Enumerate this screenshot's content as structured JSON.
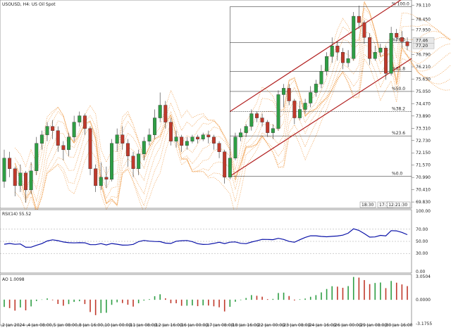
{
  "header": {
    "symbol": "USOUSD",
    "timeframe": "H4",
    "description": "US Oil Spot"
  },
  "main": {
    "price_axis": [
      "79.110",
      "78.450",
      "77.950",
      "76.790",
      "76.210",
      "75.630",
      "75.050",
      "74.470",
      "73.890",
      "73.310",
      "72.730",
      "72.150",
      "71.570",
      "70.990",
      "70.410",
      "69.830"
    ],
    "fib_levels": [
      {
        "label": "% 100.0",
        "price": 79.05
      },
      {
        "label": "%78.6",
        "price": 77.35
      },
      {
        "label": "%61.8",
        "price": 76.0
      },
      {
        "label": "%50.0",
        "price": 75.05
      },
      {
        "label": "%38.2",
        "price": 74.1
      },
      {
        "label": "%23.6",
        "price": 72.95
      },
      {
        "label": "%0.0",
        "price": 71.05
      }
    ],
    "time_markers": [
      "18:30",
      "17:30",
      "12:21:30"
    ],
    "price_tags": [
      {
        "label": "77.46",
        "price": 77.46
      },
      {
        "label": "77.20",
        "price": 77.2
      }
    ]
  },
  "rsi": {
    "label": "RSI(14) 55.52",
    "axis": [
      "100.00",
      "70.00",
      "50.00",
      "30.00",
      "0.00"
    ]
  },
  "ao": {
    "label": "AO 1.0098",
    "axis": [
      "3.0504",
      "0.0000",
      "-3.1755"
    ]
  },
  "time_axis": [
    "2 Jan 2024",
    "4 Jan 08:00",
    "5 Jan 08:00",
    "8 Jan 16:00",
    "10 Jan 00:00",
    "11 Jan 08:00",
    "12 Jan 16:00",
    "16 Jan 00:00",
    "17 Jan 08:00",
    "18 Jan 16:00",
    "22 Jan 00:00",
    "23 Jan 08:00",
    "24 Jan 16:00",
    "26 Jan 00:00",
    "29 Jan 08:00",
    "30 Jan 16:00"
  ],
  "colors": {
    "bull": "#2e9e44",
    "bear": "#c0392b",
    "channel": "#b22222",
    "cloud": "#f0a050",
    "rsi_line": "#0a12a8"
  },
  "chart_data": {
    "type": "candlestick",
    "title": "USOUSD, H4: US Oil Spot",
    "ylim": [
      69.6,
      79.3
    ],
    "candles": [
      [
        70.8,
        71.9,
        72.3,
        70.5
      ],
      [
        71.9,
        71.4,
        72.2,
        71.0
      ],
      [
        71.4,
        70.6,
        71.5,
        70.1
      ],
      [
        70.6,
        71.2,
        71.6,
        70.3
      ],
      [
        71.2,
        70.4,
        71.3,
        69.8
      ],
      [
        70.4,
        71.3,
        71.7,
        70.2
      ],
      [
        71.3,
        72.6,
        72.9,
        71.1
      ],
      [
        72.6,
        73.0,
        73.2,
        72.3
      ],
      [
        73.0,
        73.4,
        73.6,
        72.7
      ],
      [
        73.4,
        73.2,
        73.7,
        72.8
      ],
      [
        73.2,
        72.5,
        73.4,
        72.2
      ],
      [
        72.5,
        72.3,
        72.7,
        71.8
      ],
      [
        72.3,
        72.9,
        73.1,
        72.0
      ],
      [
        72.9,
        73.6,
        73.9,
        72.7
      ],
      [
        73.6,
        73.9,
        74.1,
        73.4
      ],
      [
        73.9,
        73.3,
        74.0,
        73.0
      ],
      [
        73.3,
        71.4,
        73.4,
        71.1
      ],
      [
        71.4,
        70.6,
        71.6,
        70.3
      ],
      [
        70.6,
        71.0,
        71.7,
        70.4
      ],
      [
        71.0,
        70.9,
        71.5,
        70.5
      ],
      [
        70.9,
        72.6,
        72.8,
        70.8
      ],
      [
        72.6,
        73.0,
        73.3,
        72.2
      ],
      [
        73.0,
        72.6,
        73.4,
        72.3
      ],
      [
        72.6,
        72.0,
        72.8,
        71.5
      ],
      [
        72.0,
        71.4,
        72.2,
        71.0
      ],
      [
        71.4,
        72.1,
        72.3,
        71.1
      ],
      [
        72.1,
        72.7,
        72.9,
        71.8
      ],
      [
        72.7,
        73.0,
        73.3,
        72.5
      ],
      [
        73.0,
        73.8,
        74.2,
        72.8
      ],
      [
        73.8,
        74.4,
        75.0,
        73.6
      ],
      [
        74.4,
        73.6,
        74.6,
        73.3
      ],
      [
        73.6,
        72.7,
        73.8,
        72.5
      ],
      [
        72.7,
        72.9,
        73.2,
        72.4
      ],
      [
        72.9,
        72.5,
        73.0,
        72.2
      ],
      [
        72.5,
        72.7,
        72.9,
        72.3
      ],
      [
        72.7,
        72.9,
        73.0,
        72.6
      ],
      [
        72.9,
        72.8,
        73.0,
        72.6
      ],
      [
        72.8,
        73.0,
        73.1,
        72.7
      ],
      [
        73.0,
        72.9,
        73.2,
        72.6
      ],
      [
        72.9,
        72.6,
        73.0,
        72.3
      ],
      [
        72.6,
        72.2,
        72.7,
        71.9
      ],
      [
        72.2,
        71.0,
        72.3,
        70.7
      ],
      [
        71.0,
        71.9,
        72.8,
        70.9
      ],
      [
        71.9,
        72.9,
        73.1,
        71.8
      ],
      [
        72.9,
        73.1,
        73.3,
        72.7
      ],
      [
        73.1,
        73.4,
        73.5,
        72.9
      ],
      [
        73.4,
        74.0,
        74.2,
        73.2
      ],
      [
        74.0,
        73.8,
        74.1,
        73.6
      ],
      [
        73.8,
        73.6,
        74.0,
        73.4
      ],
      [
        73.6,
        73.1,
        73.7,
        72.9
      ],
      [
        73.1,
        73.3,
        73.5,
        72.8
      ],
      [
        73.3,
        74.9,
        75.1,
        73.2
      ],
      [
        74.9,
        75.2,
        75.4,
        74.3
      ],
      [
        75.2,
        74.6,
        75.4,
        74.4
      ],
      [
        74.6,
        73.8,
        74.7,
        73.5
      ],
      [
        73.8,
        74.2,
        74.6,
        73.7
      ],
      [
        74.2,
        74.5,
        74.7,
        74.0
      ],
      [
        74.5,
        75.0,
        75.3,
        74.3
      ],
      [
        75.0,
        75.4,
        75.6,
        74.8
      ],
      [
        75.4,
        76.0,
        76.3,
        75.2
      ],
      [
        76.0,
        76.7,
        76.9,
        75.8
      ],
      [
        76.7,
        77.2,
        77.6,
        76.4
      ],
      [
        77.2,
        76.9,
        77.4,
        76.5
      ],
      [
        76.9,
        76.4,
        77.1,
        76.1
      ],
      [
        76.4,
        76.6,
        77.0,
        76.2
      ],
      [
        76.6,
        78.6,
        78.8,
        76.5
      ],
      [
        78.6,
        78.3,
        79.1,
        78.0
      ],
      [
        78.3,
        77.6,
        78.4,
        77.3
      ],
      [
        77.6,
        76.6,
        77.8,
        76.3
      ],
      [
        76.6,
        76.9,
        77.2,
        76.5
      ],
      [
        76.9,
        77.1,
        77.3,
        76.7
      ],
      [
        77.1,
        75.9,
        77.2,
        75.6
      ],
      [
        75.9,
        77.8,
        78.1,
        75.8
      ],
      [
        77.8,
        77.6,
        78.0,
        77.4
      ],
      [
        77.6,
        77.4,
        77.9,
        77.1
      ],
      [
        77.4,
        77.2,
        77.6,
        77.0
      ]
    ]
  }
}
